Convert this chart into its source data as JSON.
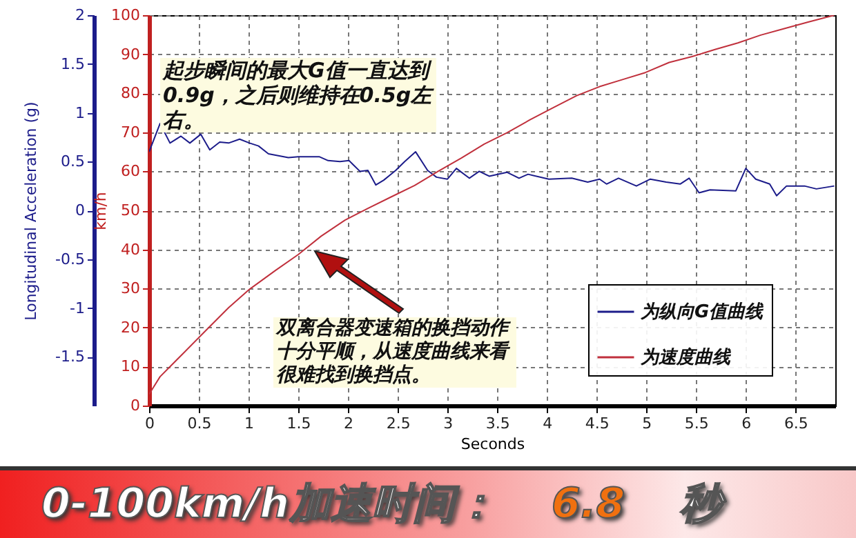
{
  "chart_data": {
    "type": "line",
    "xlabel": "Seconds",
    "ylabel": "Longitudinal Acceleration (g)",
    "y2label": "km/h",
    "xlim": [
      0,
      6.9
    ],
    "xticks": [
      0,
      0.5,
      1,
      1.5,
      2,
      2.5,
      3,
      3.5,
      4,
      4.5,
      5,
      5.5,
      6,
      6.5
    ],
    "ylim": [
      -2,
      2
    ],
    "yticks": [
      -1.5,
      -1,
      -0.5,
      0,
      0.5,
      1,
      1.5,
      2
    ],
    "y2lim": [
      0,
      100
    ],
    "y2ticks": [
      0,
      10,
      20,
      30,
      40,
      50,
      60,
      70,
      80,
      90,
      100
    ],
    "grid": true,
    "legend": "bottom right",
    "series": [
      {
        "name": "为纵向G值曲线",
        "color": "#1c1c8a",
        "x": [
          0,
          0.11,
          0.21,
          0.32,
          0.41,
          0.52,
          0.61,
          0.71,
          0.8,
          0.91,
          1.01,
          1.1,
          1.2,
          1.4,
          1.5,
          1.71,
          1.8,
          1.92,
          2.01,
          2.12,
          2.2,
          2.28,
          2.36,
          2.48,
          2.57,
          2.68,
          2.8,
          2.89,
          3.0,
          3.09,
          3.22,
          3.32,
          3.42,
          3.6,
          3.72,
          3.81,
          4.02,
          4.25,
          4.41,
          4.53,
          4.6,
          4.72,
          4.9,
          5.04,
          5.2,
          5.34,
          5.43,
          5.53,
          5.64,
          5.9,
          6.0,
          6.1,
          6.24,
          6.31,
          6.41,
          6.59,
          6.71,
          6.89
        ],
        "values": [
          0.6,
          0.89,
          0.69,
          0.76,
          0.69,
          0.78,
          0.62,
          0.7,
          0.69,
          0.73,
          0.69,
          0.66,
          0.58,
          0.54,
          0.55,
          0.55,
          0.51,
          0.5,
          0.51,
          0.4,
          0.41,
          0.26,
          0.31,
          0.41,
          0.5,
          0.6,
          0.41,
          0.34,
          0.32,
          0.43,
          0.33,
          0.4,
          0.35,
          0.39,
          0.33,
          0.37,
          0.32,
          0.33,
          0.29,
          0.32,
          0.27,
          0.33,
          0.25,
          0.32,
          0.29,
          0.27,
          0.33,
          0.18,
          0.21,
          0.2,
          0.43,
          0.32,
          0.27,
          0.15,
          0.25,
          0.25,
          0.22,
          0.25
        ]
      },
      {
        "name": "为速度曲线",
        "color": "#c0303c",
        "axis": "y2",
        "x": [
          0,
          0.11,
          0.34,
          0.57,
          0.8,
          1.01,
          1.27,
          1.5,
          1.73,
          1.97,
          2.2,
          2.43,
          2.67,
          2.9,
          3.14,
          3.37,
          3.6,
          3.83,
          4.07,
          4.3,
          4.53,
          4.76,
          4.99,
          5.23,
          5.46,
          5.69,
          5.92,
          6.15,
          6.38,
          6.62,
          6.89
        ],
        "values": [
          2.9,
          7.4,
          13.3,
          19.2,
          25.1,
          29.8,
          34.6,
          38.7,
          43.4,
          47.5,
          50.5,
          53.4,
          56.4,
          59.9,
          63.4,
          67,
          69.9,
          73.2,
          76.4,
          79.4,
          81.7,
          83.5,
          85.3,
          87.9,
          89.4,
          91.2,
          92.9,
          94.9,
          96.5,
          98.2,
          100
        ]
      }
    ],
    "annotations": [
      "起步瞬间的最大G值一直达到0.9g，之后则维持在0.5g左右。",
      "双离合器变速箱的换挡动作十分平顺，从速度曲线来看很难找到换挡点。",
      "0-100km/h加速时间：",
      "6.8",
      "秒"
    ]
  }
}
